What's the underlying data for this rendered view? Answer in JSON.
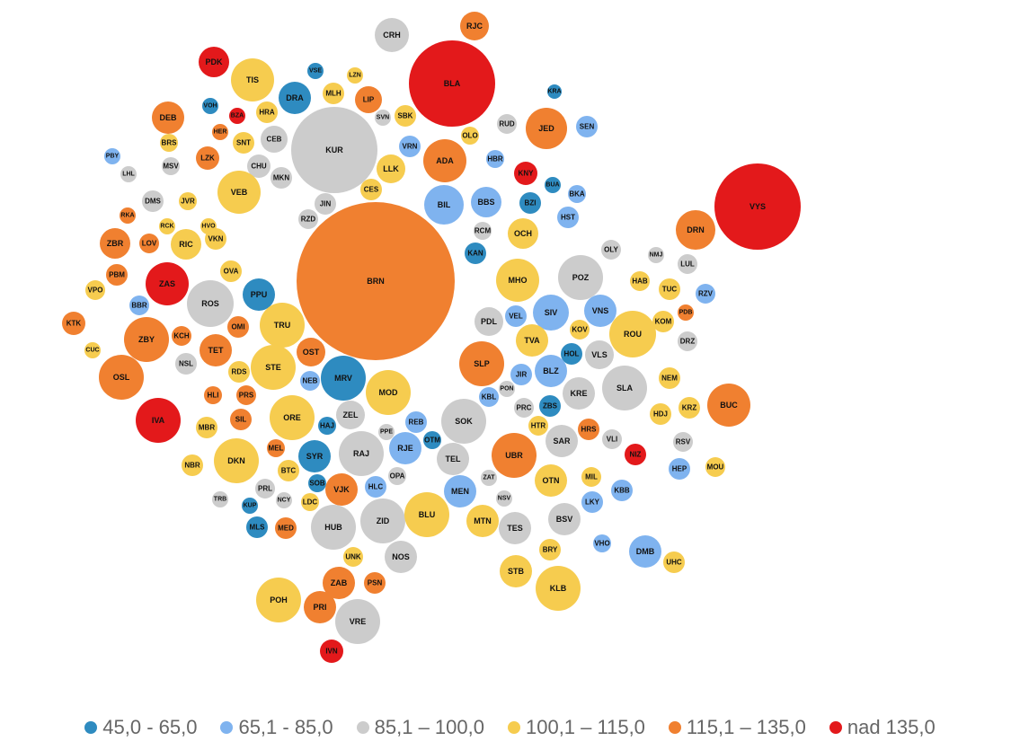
{
  "colors": {
    "c1": "#2e8bc0",
    "c2": "#7fb3ef",
    "c3": "#cccccc",
    "c4": "#f6cc4f",
    "c5": "#f08030",
    "c6": "#e3191b"
  },
  "legend": {
    "items": [
      {
        "label": "45,0 - 65,0",
        "color_key": "c1"
      },
      {
        "label": "65,1 - 85,0",
        "color_key": "c2"
      },
      {
        "label": "85,1 – 100,0",
        "color_key": "c3"
      },
      {
        "label": "100,1 – 115,0",
        "color_key": "c4"
      },
      {
        "label": "115,1 – 135,0",
        "color_key": "c5"
      },
      {
        "label": "nad 135,0",
        "color_key": "c6"
      }
    ]
  },
  "chart_data": {
    "type": "bubble",
    "classes": [
      "45,0 - 65,0",
      "65,1 - 85,0",
      "85,1 – 100,0",
      "100,1 – 115,0",
      "115,1 – 135,0",
      "nad 135,0"
    ],
    "bubbles": [
      {
        "label": "BRN",
        "class": 5
      },
      {
        "label": "KUR",
        "class": 3
      },
      {
        "label": "BLA",
        "class": 6
      },
      {
        "label": "VYS",
        "class": 6
      },
      {
        "label": "CRH",
        "class": 3
      },
      {
        "label": "RJC",
        "class": 5
      },
      {
        "label": "PDK",
        "class": 6
      },
      {
        "label": "TIS",
        "class": 4
      },
      {
        "label": "VSE",
        "class": 1
      },
      {
        "label": "LZN",
        "class": 4
      },
      {
        "label": "DRA",
        "class": 1
      },
      {
        "label": "MLH",
        "class": 4
      },
      {
        "label": "LIP",
        "class": 5
      },
      {
        "label": "HRA",
        "class": 4
      },
      {
        "label": "SVN",
        "class": 3
      },
      {
        "label": "SBK",
        "class": 4
      },
      {
        "label": "KRA",
        "class": 1
      },
      {
        "label": "VOH",
        "class": 1
      },
      {
        "label": "BZA",
        "class": 6
      },
      {
        "label": "DEB",
        "class": 5
      },
      {
        "label": "HER",
        "class": 5
      },
      {
        "label": "CEB",
        "class": 3
      },
      {
        "label": "SNT",
        "class": 4
      },
      {
        "label": "BRS",
        "class": 4
      },
      {
        "label": "RUD",
        "class": 3
      },
      {
        "label": "JED",
        "class": 5
      },
      {
        "label": "SEN",
        "class": 2
      },
      {
        "label": "OLO",
        "class": 4
      },
      {
        "label": "VRN",
        "class": 2
      },
      {
        "label": "ADA",
        "class": 5
      },
      {
        "label": "HBR",
        "class": 2
      },
      {
        "label": "PBY",
        "class": 2
      },
      {
        "label": "LZK",
        "class": 5
      },
      {
        "label": "MSV",
        "class": 3
      },
      {
        "label": "CHU",
        "class": 3
      },
      {
        "label": "LHL",
        "class": 3
      },
      {
        "label": "KNY",
        "class": 6
      },
      {
        "label": "LLK",
        "class": 4
      },
      {
        "label": "MKN",
        "class": 3
      },
      {
        "label": "VEB",
        "class": 4
      },
      {
        "label": "BUA",
        "class": 1
      },
      {
        "label": "BKA",
        "class": 2
      },
      {
        "label": "CES",
        "class": 4
      },
      {
        "label": "BIL",
        "class": 2
      },
      {
        "label": "BBS",
        "class": 2
      },
      {
        "label": "BZI",
        "class": 1
      },
      {
        "label": "DMS",
        "class": 3
      },
      {
        "label": "JVR",
        "class": 4
      },
      {
        "label": "JIN",
        "class": 3
      },
      {
        "label": "HST",
        "class": 2
      },
      {
        "label": "RKA",
        "class": 5
      },
      {
        "label": "RZD",
        "class": 3
      },
      {
        "label": "RCK",
        "class": 4
      },
      {
        "label": "HVO",
        "class": 4
      },
      {
        "label": "RCM",
        "class": 3
      },
      {
        "label": "OCH",
        "class": 4
      },
      {
        "label": "DRN",
        "class": 5
      },
      {
        "label": "ZBR",
        "class": 5
      },
      {
        "label": "LOV",
        "class": 5
      },
      {
        "label": "RIC",
        "class": 4
      },
      {
        "label": "VKN",
        "class": 4
      },
      {
        "label": "KAN",
        "class": 1
      },
      {
        "label": "OLY",
        "class": 3
      },
      {
        "label": "NMJ",
        "class": 3
      },
      {
        "label": "LUL",
        "class": 3
      },
      {
        "label": "PBM",
        "class": 5
      },
      {
        "label": "OVA",
        "class": 4
      },
      {
        "label": "MHO",
        "class": 4
      },
      {
        "label": "POZ",
        "class": 3
      },
      {
        "label": "HAB",
        "class": 4
      },
      {
        "label": "TUC",
        "class": 4
      },
      {
        "label": "RZV",
        "class": 2
      },
      {
        "label": "VPO",
        "class": 4
      },
      {
        "label": "ZAS",
        "class": 6
      },
      {
        "label": "PPU",
        "class": 1
      },
      {
        "label": "BBR",
        "class": 2
      },
      {
        "label": "ROS",
        "class": 3
      },
      {
        "label": "PDB",
        "class": 5
      },
      {
        "label": "KTK",
        "class": 5
      },
      {
        "label": "PDL",
        "class": 3
      },
      {
        "label": "VEL",
        "class": 2
      },
      {
        "label": "SIV",
        "class": 2
      },
      {
        "label": "VNS",
        "class": 2
      },
      {
        "label": "KOM",
        "class": 4
      },
      {
        "label": "TRU",
        "class": 4
      },
      {
        "label": "OMI",
        "class": 5
      },
      {
        "label": "KOV",
        "class": 4
      },
      {
        "label": "ROU",
        "class": 4
      },
      {
        "label": "CUC",
        "class": 4
      },
      {
        "label": "ZBY",
        "class": 5
      },
      {
        "label": "KCH",
        "class": 5
      },
      {
        "label": "TET",
        "class": 5
      },
      {
        "label": "TVA",
        "class": 4
      },
      {
        "label": "DRZ",
        "class": 3
      },
      {
        "label": "OST",
        "class": 5
      },
      {
        "label": "HOL",
        "class": 1
      },
      {
        "label": "VLS",
        "class": 3
      },
      {
        "label": "NSL",
        "class": 3
      },
      {
        "label": "SLP",
        "class": 5
      },
      {
        "label": "OSL",
        "class": 5
      },
      {
        "label": "RDS",
        "class": 4
      },
      {
        "label": "STE",
        "class": 4
      },
      {
        "label": "JIR",
        "class": 2
      },
      {
        "label": "BLZ",
        "class": 2
      },
      {
        "label": "NEM",
        "class": 4
      },
      {
        "label": "MRV",
        "class": 1
      },
      {
        "label": "NEB",
        "class": 2
      },
      {
        "label": "PON",
        "class": 3
      },
      {
        "label": "SLA",
        "class": 3
      },
      {
        "label": "KRE",
        "class": 3
      },
      {
        "label": "BUC",
        "class": 5
      },
      {
        "label": "HLI",
        "class": 5
      },
      {
        "label": "PRS",
        "class": 5
      },
      {
        "label": "MOD",
        "class": 4
      },
      {
        "label": "KBL",
        "class": 2
      },
      {
        "label": "IVA",
        "class": 6
      },
      {
        "label": "ZBS",
        "class": 1
      },
      {
        "label": "PRC",
        "class": 3
      },
      {
        "label": "KRZ",
        "class": 4
      },
      {
        "label": "HDJ",
        "class": 4
      },
      {
        "label": "ORE",
        "class": 4
      },
      {
        "label": "ZEL",
        "class": 3
      },
      {
        "label": "SOK",
        "class": 3
      },
      {
        "label": "MBR",
        "class": 4
      },
      {
        "label": "SIL",
        "class": 5
      },
      {
        "label": "HAJ",
        "class": 1
      },
      {
        "label": "REB",
        "class": 2
      },
      {
        "label": "HTR",
        "class": 4
      },
      {
        "label": "HRS",
        "class": 5
      },
      {
        "label": "PPE",
        "class": 3
      },
      {
        "label": "SAR",
        "class": 3
      },
      {
        "label": "VLI",
        "class": 3
      },
      {
        "label": "RSV",
        "class": 3
      },
      {
        "label": "MEL",
        "class": 5
      },
      {
        "label": "RAJ",
        "class": 3
      },
      {
        "label": "OTM",
        "class": 1
      },
      {
        "label": "NIZ",
        "class": 6
      },
      {
        "label": "DKN",
        "class": 4
      },
      {
        "label": "SYR",
        "class": 1
      },
      {
        "label": "RJE",
        "class": 2
      },
      {
        "label": "TEL",
        "class": 3
      },
      {
        "label": "UBR",
        "class": 5
      },
      {
        "label": "NBR",
        "class": 4
      },
      {
        "label": "HEP",
        "class": 2
      },
      {
        "label": "MOU",
        "class": 4
      },
      {
        "label": "BTC",
        "class": 4
      },
      {
        "label": "OPA",
        "class": 3
      },
      {
        "label": "ZAT",
        "class": 3
      },
      {
        "label": "MIL",
        "class": 4
      },
      {
        "label": "SOB",
        "class": 1
      },
      {
        "label": "OTN",
        "class": 4
      },
      {
        "label": "KBB",
        "class": 2
      },
      {
        "label": "PRL",
        "class": 3
      },
      {
        "label": "VJK",
        "class": 5
      },
      {
        "label": "HLC",
        "class": 2
      },
      {
        "label": "TRB",
        "class": 3
      },
      {
        "label": "NCY",
        "class": 3
      },
      {
        "label": "LDC",
        "class": 4
      },
      {
        "label": "MEN",
        "class": 2
      },
      {
        "label": "NSV",
        "class": 3
      },
      {
        "label": "LKY",
        "class": 2
      },
      {
        "label": "KUP",
        "class": 1
      },
      {
        "label": "ZID",
        "class": 3
      },
      {
        "label": "BLU",
        "class": 4
      },
      {
        "label": "MTN",
        "class": 4
      },
      {
        "label": "TES",
        "class": 3
      },
      {
        "label": "BSV",
        "class": 3
      },
      {
        "label": "MLS",
        "class": 1
      },
      {
        "label": "MED",
        "class": 5
      },
      {
        "label": "HUB",
        "class": 3
      },
      {
        "label": "VHO",
        "class": 2
      },
      {
        "label": "DMB",
        "class": 2
      },
      {
        "label": "UHC",
        "class": 4
      },
      {
        "label": "BRY",
        "class": 4
      },
      {
        "label": "UNK",
        "class": 4
      },
      {
        "label": "NOS",
        "class": 3
      },
      {
        "label": "STB",
        "class": 4
      },
      {
        "label": "KLB",
        "class": 4
      },
      {
        "label": "ZAB",
        "class": 5
      },
      {
        "label": "PSN",
        "class": 5
      },
      {
        "label": "POH",
        "class": 4
      },
      {
        "label": "PRI",
        "class": 5
      },
      {
        "label": "VRE",
        "class": 3
      },
      {
        "label": "IVN",
        "class": 6
      }
    ]
  }
}
